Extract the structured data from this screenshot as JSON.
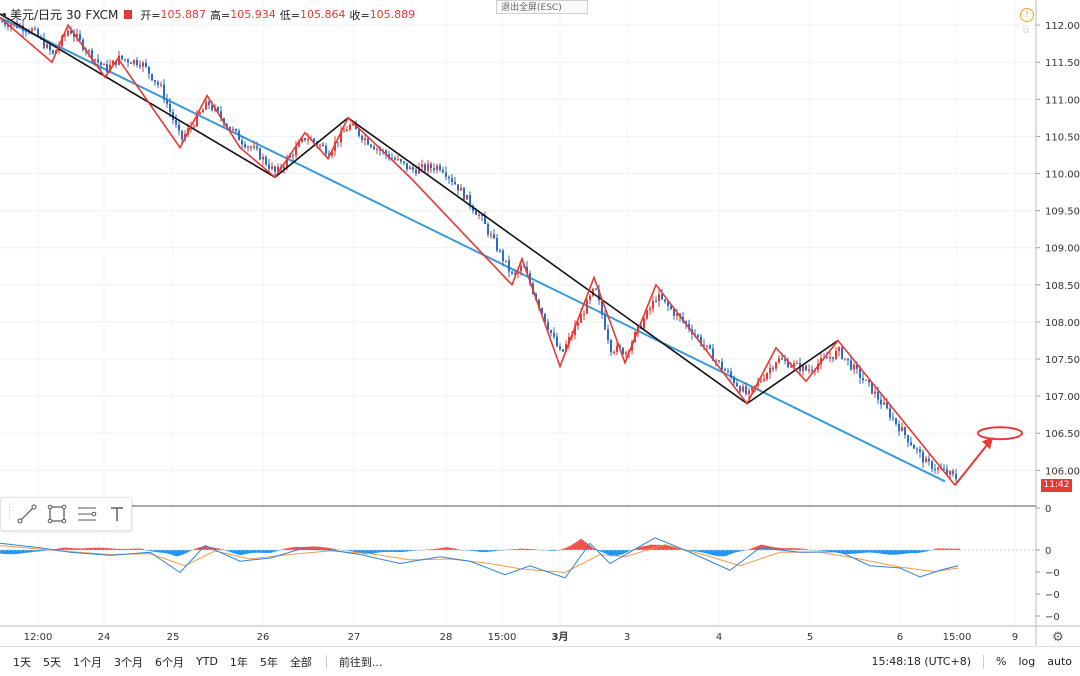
{
  "header": {
    "symbol": "美元/日元",
    "interval": "30",
    "source": "FXCM",
    "open_label": "开=",
    "open": "105.887",
    "high_label": "高=",
    "high": "105.934",
    "low_label": "低=",
    "low": "105.864",
    "close_label": "收=",
    "close": "105.889"
  },
  "exit_fullscreen": "退出全屏(ESC)",
  "price_tag": "11:42",
  "colors": {
    "up": "#e53935",
    "down": "#2b6cc4",
    "trend": "#3a9ad9",
    "zigzag_black": "#111111",
    "zigzag_red": "#e53935",
    "macd_pos": "#ef5350",
    "macd_neg": "#2196f3"
  },
  "toolbar": {
    "icons": [
      "trend-line-icon",
      "rectangle-icon",
      "fib-lines-icon",
      "text-tool-icon"
    ]
  },
  "bottom": {
    "ranges": [
      "1天",
      "5天",
      "1个月",
      "3个月",
      "6个月",
      "YTD",
      "1年",
      "5年",
      "全部"
    ],
    "goto": "前往到...",
    "time": "15:48:18 (UTC+8)",
    "percent": "%",
    "log": "log",
    "auto": "auto"
  },
  "chart_data": [
    {
      "type": "candlestick",
      "pair": "USD/JPY",
      "y_ticks": [
        "112.000",
        "111.500",
        "111.000",
        "110.500",
        "110.000",
        "109.500",
        "109.000",
        "108.500",
        "108.000",
        "107.500",
        "107.000",
        "106.500",
        "106.000"
      ],
      "ylim": [
        105.6,
        112.15
      ],
      "x_ticks": [
        "12:00",
        "24",
        "25",
        "26",
        "27",
        "28",
        "15:00",
        "3月",
        "3",
        "4",
        "5",
        "6",
        "15:00",
        "9"
      ],
      "zigzag_red": [
        [
          0,
          112.1
        ],
        [
          52,
          111.5
        ],
        [
          68,
          112.0
        ],
        [
          105,
          111.3
        ],
        [
          118,
          111.55
        ],
        [
          180,
          110.35
        ],
        [
          207,
          111.05
        ],
        [
          240,
          110.35
        ],
        [
          275,
          109.95
        ],
        [
          305,
          110.55
        ],
        [
          328,
          110.2
        ],
        [
          348,
          110.75
        ],
        [
          410,
          109.95
        ],
        [
          512,
          108.5
        ],
        [
          522,
          108.85
        ],
        [
          560,
          107.4
        ],
        [
          594,
          108.6
        ],
        [
          625,
          107.45
        ],
        [
          656,
          108.5
        ],
        [
          747,
          106.9
        ],
        [
          776,
          107.65
        ],
        [
          806,
          107.2
        ],
        [
          838,
          107.75
        ],
        [
          955,
          105.8
        ]
      ],
      "zigzag_black": [
        [
          0,
          112.15
        ],
        [
          275,
          109.95
        ],
        [
          348,
          110.75
        ],
        [
          747,
          106.9
        ],
        [
          838,
          107.75
        ]
      ],
      "trendline": [
        [
          0,
          112.1
        ],
        [
          945,
          105.85
        ]
      ],
      "annotation": {
        "type": "arrow",
        "target_ellipse_level": 106.5
      },
      "candle_path": [
        [
          0,
          112.05
        ],
        [
          30,
          111.95
        ],
        [
          52,
          111.6
        ],
        [
          68,
          111.95
        ],
        [
          90,
          111.6
        ],
        [
          105,
          111.4
        ],
        [
          118,
          111.55
        ],
        [
          140,
          111.5
        ],
        [
          160,
          111.15
        ],
        [
          180,
          110.45
        ],
        [
          207,
          110.95
        ],
        [
          240,
          110.45
        ],
        [
          255,
          110.3
        ],
        [
          275,
          110.0
        ],
        [
          305,
          110.5
        ],
        [
          328,
          110.3
        ],
        [
          348,
          110.65
        ],
        [
          375,
          110.35
        ],
        [
          410,
          110.05
        ],
        [
          440,
          110.1
        ],
        [
          455,
          109.85
        ],
        [
          480,
          109.4
        ],
        [
          512,
          108.6
        ],
        [
          522,
          108.75
        ],
        [
          545,
          108.0
        ],
        [
          560,
          107.55
        ],
        [
          594,
          108.45
        ],
        [
          610,
          107.65
        ],
        [
          625,
          107.6
        ],
        [
          656,
          108.35
        ],
        [
          690,
          107.9
        ],
        [
          720,
          107.4
        ],
        [
          747,
          107.0
        ],
        [
          776,
          107.5
        ],
        [
          806,
          107.35
        ],
        [
          838,
          107.6
        ],
        [
          870,
          107.1
        ],
        [
          900,
          106.55
        ],
        [
          925,
          106.1
        ],
        [
          955,
          105.9
        ]
      ]
    },
    {
      "type": "macd",
      "y_ticks": [
        "0",
        "0",
        "−0",
        "−0",
        "−0"
      ],
      "histogram_peaks": [
        [
          0,
          -0.06
        ],
        [
          30,
          -0.05
        ],
        [
          65,
          0.04
        ],
        [
          100,
          0.03
        ],
        [
          140,
          0.02
        ],
        [
          175,
          -0.11
        ],
        [
          205,
          0.09
        ],
        [
          240,
          -0.08
        ],
        [
          270,
          -0.04
        ],
        [
          295,
          0.07
        ],
        [
          330,
          0.03
        ],
        [
          365,
          -0.06
        ],
        [
          400,
          -0.03
        ],
        [
          445,
          0.04
        ],
        [
          480,
          -0.04
        ],
        [
          520,
          0.03
        ],
        [
          555,
          -0.02
        ],
        [
          580,
          0.15
        ],
        [
          610,
          -0.13
        ],
        [
          650,
          0.12
        ],
        [
          690,
          -0.02
        ],
        [
          725,
          -0.1
        ],
        [
          760,
          0.07
        ],
        [
          800,
          0.02
        ],
        [
          840,
          -0.05
        ],
        [
          880,
          -0.06
        ],
        [
          915,
          -0.07
        ],
        [
          935,
          0.02
        ],
        [
          958,
          0.03
        ]
      ],
      "line_fast": [
        [
          0,
          0.15
        ],
        [
          40,
          0.05
        ],
        [
          70,
          -0.05
        ],
        [
          110,
          -0.12
        ],
        [
          150,
          -0.05
        ],
        [
          180,
          -0.5
        ],
        [
          205,
          0.1
        ],
        [
          240,
          -0.25
        ],
        [
          270,
          -0.18
        ],
        [
          300,
          0.02
        ],
        [
          330,
          0.0
        ],
        [
          360,
          -0.1
        ],
        [
          400,
          -0.3
        ],
        [
          440,
          -0.15
        ],
        [
          470,
          -0.25
        ],
        [
          505,
          -0.55
        ],
        [
          530,
          -0.35
        ],
        [
          565,
          -0.62
        ],
        [
          590,
          0.15
        ],
        [
          610,
          -0.3
        ],
        [
          655,
          0.27
        ],
        [
          690,
          -0.05
        ],
        [
          730,
          -0.45
        ],
        [
          760,
          0.05
        ],
        [
          800,
          -0.05
        ],
        [
          840,
          -0.04
        ],
        [
          870,
          -0.35
        ],
        [
          900,
          -0.4
        ],
        [
          920,
          -0.6
        ],
        [
          940,
          -0.45
        ],
        [
          958,
          -0.35
        ]
      ],
      "line_slow": [
        [
          0,
          0.1
        ],
        [
          60,
          -0.02
        ],
        [
          110,
          -0.1
        ],
        [
          150,
          -0.08
        ],
        [
          185,
          -0.35
        ],
        [
          215,
          -0.02
        ],
        [
          250,
          -0.2
        ],
        [
          290,
          -0.1
        ],
        [
          330,
          -0.02
        ],
        [
          370,
          -0.08
        ],
        [
          410,
          -0.22
        ],
        [
          450,
          -0.2
        ],
        [
          490,
          -0.3
        ],
        [
          520,
          -0.42
        ],
        [
          565,
          -0.5
        ],
        [
          600,
          -0.1
        ],
        [
          625,
          -0.15
        ],
        [
          665,
          0.12
        ],
        [
          700,
          -0.08
        ],
        [
          740,
          -0.35
        ],
        [
          780,
          -0.05
        ],
        [
          820,
          -0.05
        ],
        [
          860,
          -0.2
        ],
        [
          900,
          -0.38
        ],
        [
          935,
          -0.48
        ],
        [
          958,
          -0.4
        ]
      ]
    }
  ]
}
